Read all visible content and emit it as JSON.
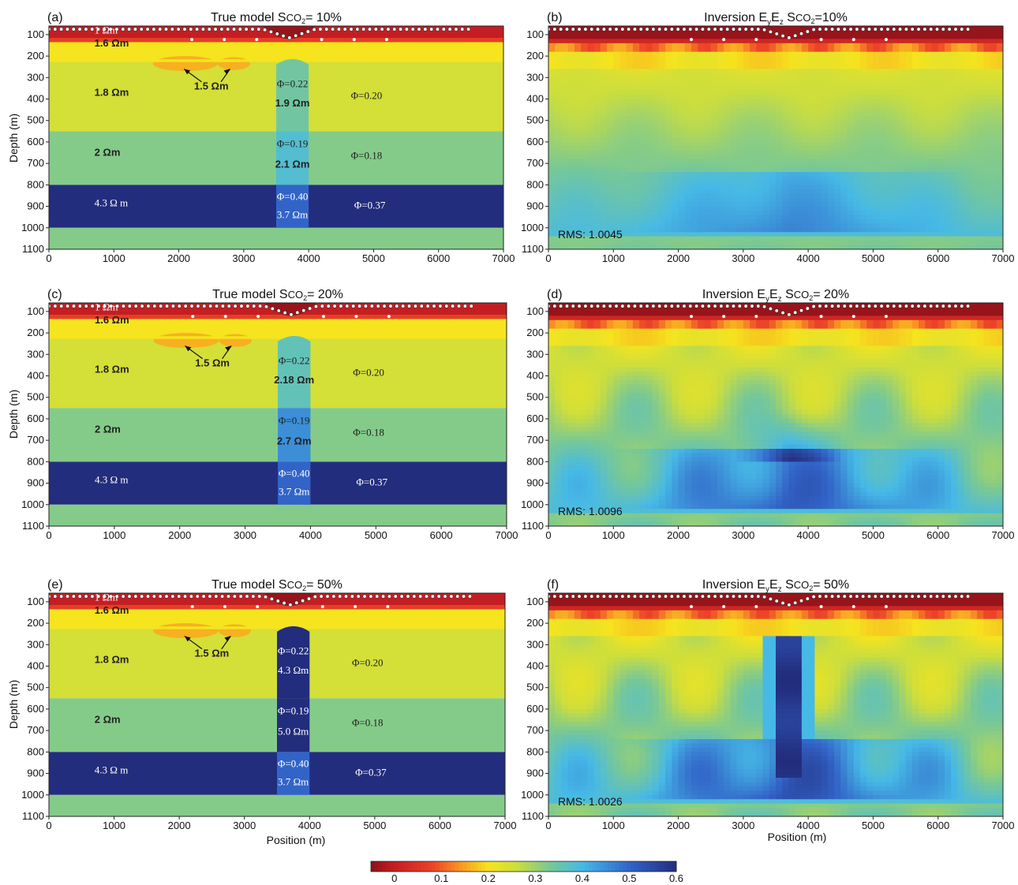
{
  "figure": {
    "xlabel": "Position (m)",
    "ylabel": "Depth (m)",
    "colorbar": {
      "ticks": [
        "0",
        "0.1",
        "0.2",
        "0.3",
        "0.4",
        "0.5",
        "0.6"
      ],
      "range": [
        -0.05,
        0.6
      ]
    }
  },
  "chart_data": [
    {
      "panel": "(a)",
      "type": "heatmap",
      "title": "True model S",
      "title_sub": "CO",
      "title_sub2": "2",
      "title_suffix": "= 10%",
      "xlim": [
        0,
        7000
      ],
      "ylim": [
        1100,
        60
      ],
      "xticks": [
        "0",
        "1000",
        "2000",
        "3000",
        "4000",
        "5000",
        "6000",
        "7000"
      ],
      "yticks": [
        "100",
        "200",
        "300",
        "400",
        "500",
        "600",
        "700",
        "800",
        "900",
        "1000",
        "1100"
      ],
      "kind": "true",
      "plume_saturation": 0.1,
      "layers": [
        {
          "top": 60,
          "bottom": 130,
          "value": 0.0,
          "label": "1 Ωm"
        },
        {
          "top": 130,
          "bottom": 225,
          "value": 0.2,
          "label": "1.6 Ωm"
        },
        {
          "top": 225,
          "bottom": 550,
          "value": 0.25,
          "label": "1.8 Ωm",
          "porosity": "Φ=0.20"
        },
        {
          "top": 550,
          "bottom": 800,
          "value": 0.32,
          "label": "2 Ωm",
          "porosity": "Φ=0.18"
        },
        {
          "top": 800,
          "bottom": 1000,
          "value": 0.6,
          "label": "4.3 Ω m",
          "porosity": "Φ=0.37"
        },
        {
          "top": 1000,
          "bottom": 1100,
          "value": 0.32
        }
      ],
      "plume": {
        "x": [
          3500,
          4000
        ],
        "segments": [
          {
            "top": 210,
            "bottom": 550,
            "value": 0.34,
            "porosity": "Φ=0.22",
            "label": "1.9 Ωm"
          },
          {
            "top": 550,
            "bottom": 800,
            "value": 0.38,
            "porosity": "Φ=0.19",
            "label": "2.1 Ωm"
          },
          {
            "top": 800,
            "bottom": 1000,
            "value": 0.5,
            "porosity": "Φ=0.40",
            "label": "3.7 Ωm"
          }
        ]
      },
      "lens_label": "1.5 Ωm"
    },
    {
      "panel": "(b)",
      "type": "heatmap",
      "title": "Inversion E",
      "title_sub": "y",
      "title_mid": "E",
      "title_sub2": "z",
      "title_suffix": " S",
      "title_co": "CO",
      "title_end": "2",
      "title_tail": "=10%",
      "xlim": [
        0,
        7000
      ],
      "ylim": [
        1100,
        60
      ],
      "xticks": [
        "0",
        "1000",
        "2000",
        "3000",
        "4000",
        "5000",
        "6000",
        "7000"
      ],
      "yticks": [
        "100",
        "200",
        "300",
        "400",
        "500",
        "600",
        "700",
        "800",
        "900",
        "1000",
        "1100"
      ],
      "kind": "inversion",
      "rms": "RMS: 1.0045",
      "variant": 1
    },
    {
      "panel": "(c)",
      "type": "heatmap",
      "title": "True model S",
      "title_sub": "CO",
      "title_sub2": "2",
      "title_suffix": "= 20%",
      "xlim": [
        0,
        7000
      ],
      "ylim": [
        1100,
        60
      ],
      "xticks": [
        "0",
        "1000",
        "2000",
        "3000",
        "4000",
        "5000",
        "6000",
        "7000"
      ],
      "yticks": [
        "100",
        "200",
        "300",
        "400",
        "500",
        "600",
        "700",
        "800",
        "900",
        "1000",
        "1100"
      ],
      "kind": "true",
      "plume_saturation": 0.2,
      "layers": [
        {
          "top": 60,
          "bottom": 130,
          "value": 0.0,
          "label": "1 Ωm"
        },
        {
          "top": 130,
          "bottom": 225,
          "value": 0.2,
          "label": "1.6 Ωm"
        },
        {
          "top": 225,
          "bottom": 550,
          "value": 0.25,
          "label": "1.8 Ωm",
          "porosity": "Φ=0.20"
        },
        {
          "top": 550,
          "bottom": 800,
          "value": 0.32,
          "label": "2 Ωm",
          "porosity": "Φ=0.18"
        },
        {
          "top": 800,
          "bottom": 1000,
          "value": 0.6,
          "label": "4.3 Ω m",
          "porosity": "Φ=0.37"
        },
        {
          "top": 1000,
          "bottom": 1100,
          "value": 0.32
        }
      ],
      "plume": {
        "x": [
          3500,
          4000
        ],
        "segments": [
          {
            "top": 210,
            "bottom": 550,
            "value": 0.36,
            "porosity": "Φ=0.22",
            "label": "2.18 Ωm"
          },
          {
            "top": 550,
            "bottom": 800,
            "value": 0.45,
            "porosity": "Φ=0.19",
            "label": "2.7 Ωm"
          },
          {
            "top": 800,
            "bottom": 1000,
            "value": 0.5,
            "porosity": "Φ=0.40",
            "label": "3.7 Ωm"
          }
        ]
      },
      "lens_label": "1.5 Ωm"
    },
    {
      "panel": "(d)",
      "type": "heatmap",
      "title": "Inversion E",
      "title_sub": "y",
      "title_mid": "E",
      "title_sub2": "z",
      "title_suffix": " S",
      "title_co": "CO",
      "title_end": "2",
      "title_tail": "= 20%",
      "xlim": [
        0,
        7000
      ],
      "ylim": [
        1100,
        60
      ],
      "xticks": [
        "0",
        "1000",
        "2000",
        "3000",
        "4000",
        "5000",
        "6000",
        "7000"
      ],
      "yticks": [
        "100",
        "200",
        "300",
        "400",
        "500",
        "600",
        "700",
        "800",
        "900",
        "1000",
        "1100"
      ],
      "kind": "inversion",
      "rms": "RMS: 1.0096",
      "variant": 2
    },
    {
      "panel": "(e)",
      "type": "heatmap",
      "title": "True model S",
      "title_sub": "CO",
      "title_sub2": "2",
      "title_suffix": "= 50%",
      "xlim": [
        0,
        7000
      ],
      "ylim": [
        1100,
        60
      ],
      "xticks": [
        "0",
        "1000",
        "2000",
        "3000",
        "4000",
        "5000",
        "6000",
        "7000"
      ],
      "yticks": [
        "100",
        "200",
        "300",
        "400",
        "500",
        "600",
        "700",
        "800",
        "900",
        "1000",
        "1100"
      ],
      "kind": "true",
      "plume_saturation": 0.5,
      "layers": [
        {
          "top": 60,
          "bottom": 130,
          "value": 0.0,
          "label": "1 Ωm"
        },
        {
          "top": 130,
          "bottom": 225,
          "value": 0.2,
          "label": "1.6 Ωm"
        },
        {
          "top": 225,
          "bottom": 550,
          "value": 0.25,
          "label": "1.8 Ωm",
          "porosity": "Φ=0.20"
        },
        {
          "top": 550,
          "bottom": 800,
          "value": 0.32,
          "label": "2 Ωm",
          "porosity": "Φ=0.18"
        },
        {
          "top": 800,
          "bottom": 1000,
          "value": 0.6,
          "label": "4.3 Ω m",
          "porosity": "Φ=0.37"
        },
        {
          "top": 1000,
          "bottom": 1100,
          "value": 0.32
        }
      ],
      "plume": {
        "x": [
          3500,
          4000
        ],
        "segments": [
          {
            "top": 210,
            "bottom": 550,
            "value": 0.6,
            "porosity": "Φ=0.22",
            "label": "4.3 Ωm"
          },
          {
            "top": 550,
            "bottom": 800,
            "value": 0.6,
            "porosity": "Φ=0.19",
            "label": "5.0 Ωm"
          },
          {
            "top": 800,
            "bottom": 1000,
            "value": 0.5,
            "porosity": "Φ=0.40",
            "label": "3.7 Ωm"
          }
        ]
      },
      "lens_label": "1.5 Ωm"
    },
    {
      "panel": "(f)",
      "type": "heatmap",
      "title": "Inversion  E",
      "title_sub": "y",
      "title_mid": "E",
      "title_sub2": "z",
      "title_suffix": "  S",
      "title_co": "CO",
      "title_end": "2",
      "title_tail": "= 50%",
      "xlim": [
        0,
        7000
      ],
      "ylim": [
        1100,
        60
      ],
      "xticks": [
        "0",
        "1000",
        "2000",
        "3000",
        "4000",
        "5000",
        "6000",
        "7000"
      ],
      "yticks": [
        "100",
        "200",
        "300",
        "400",
        "500",
        "600",
        "700",
        "800",
        "900",
        "1000",
        "1100"
      ],
      "kind": "inversion",
      "rms": "RMS: 1.0026",
      "variant": 3
    }
  ]
}
